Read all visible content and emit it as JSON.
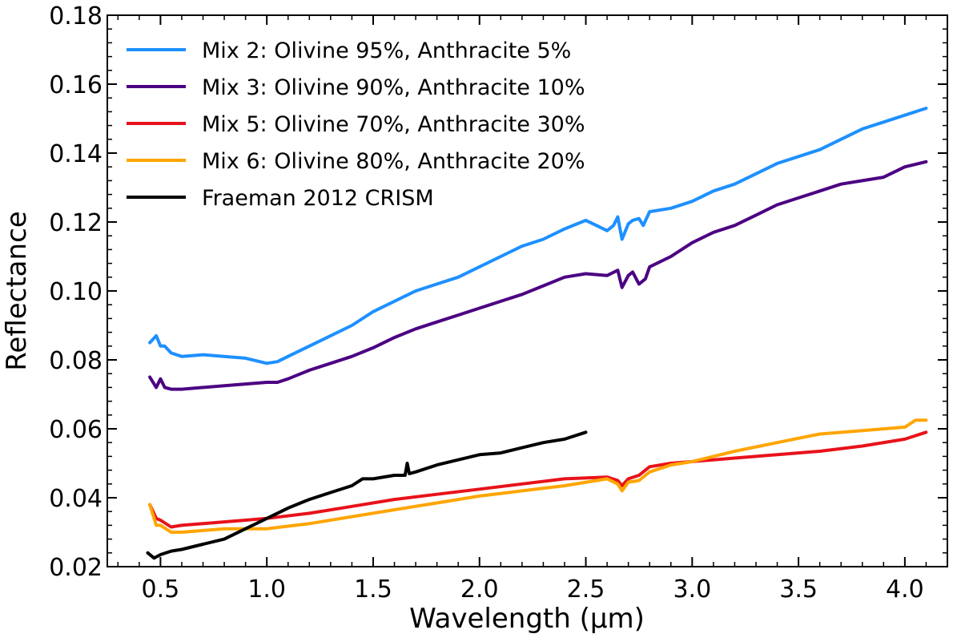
{
  "chart_data": {
    "type": "line",
    "title": "",
    "xlabel": "Wavelength (µm)",
    "ylabel": "Reflectance",
    "xlim": [
      0.25,
      4.2
    ],
    "ylim": [
      0.02,
      0.18
    ],
    "xticks": [
      "0.5",
      "1.0",
      "1.5",
      "2.0",
      "2.5",
      "3.0",
      "3.5",
      "4.0"
    ],
    "yticks": [
      "0.02",
      "0.04",
      "0.06",
      "0.08",
      "0.10",
      "0.12",
      "0.14",
      "0.16",
      "0.18"
    ],
    "legend_position": "top-left",
    "series": [
      {
        "name": "Mix 2: Olivine 95%, Anthracite 5%",
        "color": "#1e90ff",
        "x": [
          0.45,
          0.48,
          0.5,
          0.52,
          0.55,
          0.6,
          0.7,
          0.8,
          0.9,
          1.0,
          1.05,
          1.1,
          1.2,
          1.3,
          1.4,
          1.5,
          1.6,
          1.7,
          1.8,
          1.9,
          2.0,
          2.1,
          2.2,
          2.3,
          2.4,
          2.5,
          2.55,
          2.6,
          2.63,
          2.65,
          2.67,
          2.7,
          2.72,
          2.75,
          2.77,
          2.8,
          2.9,
          3.0,
          3.1,
          3.2,
          3.3,
          3.4,
          3.5,
          3.6,
          3.7,
          3.8,
          3.9,
          4.0,
          4.1
        ],
        "values": [
          0.085,
          0.087,
          0.084,
          0.084,
          0.082,
          0.081,
          0.0815,
          0.081,
          0.0805,
          0.079,
          0.0795,
          0.081,
          0.084,
          0.087,
          0.09,
          0.094,
          0.097,
          0.1,
          0.102,
          0.104,
          0.107,
          0.11,
          0.113,
          0.115,
          0.118,
          0.1205,
          0.119,
          0.1175,
          0.119,
          0.1215,
          0.115,
          0.1195,
          0.1205,
          0.121,
          0.119,
          0.123,
          0.124,
          0.126,
          0.129,
          0.131,
          0.134,
          0.137,
          0.139,
          0.141,
          0.144,
          0.147,
          0.149,
          0.151,
          0.153
        ]
      },
      {
        "name": "Mix 3: Olivine 90%, Anthracite 10%",
        "color": "#4b0082",
        "x": [
          0.45,
          0.48,
          0.5,
          0.52,
          0.55,
          0.6,
          0.7,
          0.8,
          0.9,
          1.0,
          1.05,
          1.1,
          1.2,
          1.3,
          1.4,
          1.5,
          1.6,
          1.7,
          1.8,
          1.9,
          2.0,
          2.1,
          2.2,
          2.3,
          2.4,
          2.5,
          2.6,
          2.65,
          2.67,
          2.7,
          2.72,
          2.75,
          2.78,
          2.8,
          2.9,
          3.0,
          3.1,
          3.2,
          3.3,
          3.4,
          3.5,
          3.6,
          3.7,
          3.8,
          3.9,
          4.0,
          4.1
        ],
        "values": [
          0.075,
          0.072,
          0.0745,
          0.072,
          0.0715,
          0.0715,
          0.072,
          0.0725,
          0.073,
          0.0735,
          0.0735,
          0.0745,
          0.077,
          0.079,
          0.081,
          0.0835,
          0.0865,
          0.089,
          0.091,
          0.093,
          0.095,
          0.097,
          0.099,
          0.1015,
          0.104,
          0.105,
          0.1045,
          0.106,
          0.101,
          0.1045,
          0.1055,
          0.102,
          0.1035,
          0.107,
          0.11,
          0.114,
          0.117,
          0.119,
          0.122,
          0.125,
          0.127,
          0.129,
          0.131,
          0.132,
          0.133,
          0.136,
          0.1375
        ]
      },
      {
        "name": "Mix 5: Olivine 70%, Anthracite 30%",
        "color": "#e8121a",
        "x": [
          0.45,
          0.48,
          0.5,
          0.55,
          0.6,
          0.7,
          0.8,
          0.9,
          1.0,
          1.2,
          1.4,
          1.6,
          1.8,
          2.0,
          2.2,
          2.4,
          2.6,
          2.65,
          2.67,
          2.7,
          2.75,
          2.8,
          2.9,
          3.0,
          3.2,
          3.4,
          3.6,
          3.8,
          4.0,
          4.1
        ],
        "values": [
          0.038,
          0.034,
          0.0335,
          0.0315,
          0.032,
          0.0325,
          0.033,
          0.0335,
          0.034,
          0.0355,
          0.0375,
          0.0395,
          0.041,
          0.0425,
          0.044,
          0.0455,
          0.046,
          0.045,
          0.0435,
          0.0455,
          0.0465,
          0.049,
          0.05,
          0.0505,
          0.0515,
          0.0525,
          0.0535,
          0.055,
          0.057,
          0.059
        ]
      },
      {
        "name": "Mix 6: Olivine 80%, Anthracite 20%",
        "color": "#ffa500",
        "x": [
          0.45,
          0.48,
          0.5,
          0.55,
          0.6,
          0.7,
          0.8,
          0.9,
          1.0,
          1.2,
          1.4,
          1.6,
          1.8,
          2.0,
          2.2,
          2.4,
          2.6,
          2.65,
          2.67,
          2.7,
          2.75,
          2.8,
          2.9,
          3.0,
          3.2,
          3.4,
          3.6,
          3.8,
          4.0,
          4.05,
          4.1
        ],
        "values": [
          0.038,
          0.032,
          0.032,
          0.03,
          0.03,
          0.0305,
          0.031,
          0.031,
          0.031,
          0.0325,
          0.0345,
          0.0365,
          0.0385,
          0.0405,
          0.042,
          0.0435,
          0.0455,
          0.044,
          0.042,
          0.0445,
          0.045,
          0.0475,
          0.0495,
          0.0505,
          0.0535,
          0.056,
          0.0585,
          0.0595,
          0.0605,
          0.0625,
          0.0625
        ]
      },
      {
        "name": "Fraeman 2012 CRISM",
        "color": "#000000",
        "x": [
          0.44,
          0.47,
          0.5,
          0.55,
          0.6,
          0.7,
          0.8,
          0.9,
          1.0,
          1.1,
          1.2,
          1.3,
          1.4,
          1.45,
          1.5,
          1.6,
          1.65,
          1.66,
          1.67,
          1.7,
          1.8,
          1.9,
          2.0,
          2.1,
          2.2,
          2.3,
          2.4,
          2.5
        ],
        "values": [
          0.024,
          0.0225,
          0.0235,
          0.0245,
          0.025,
          0.0265,
          0.028,
          0.031,
          0.034,
          0.037,
          0.0395,
          0.0415,
          0.0435,
          0.0455,
          0.0455,
          0.0465,
          0.0465,
          0.05,
          0.047,
          0.0475,
          0.0495,
          0.051,
          0.0525,
          0.053,
          0.0545,
          0.056,
          0.057,
          0.059
        ]
      }
    ]
  }
}
